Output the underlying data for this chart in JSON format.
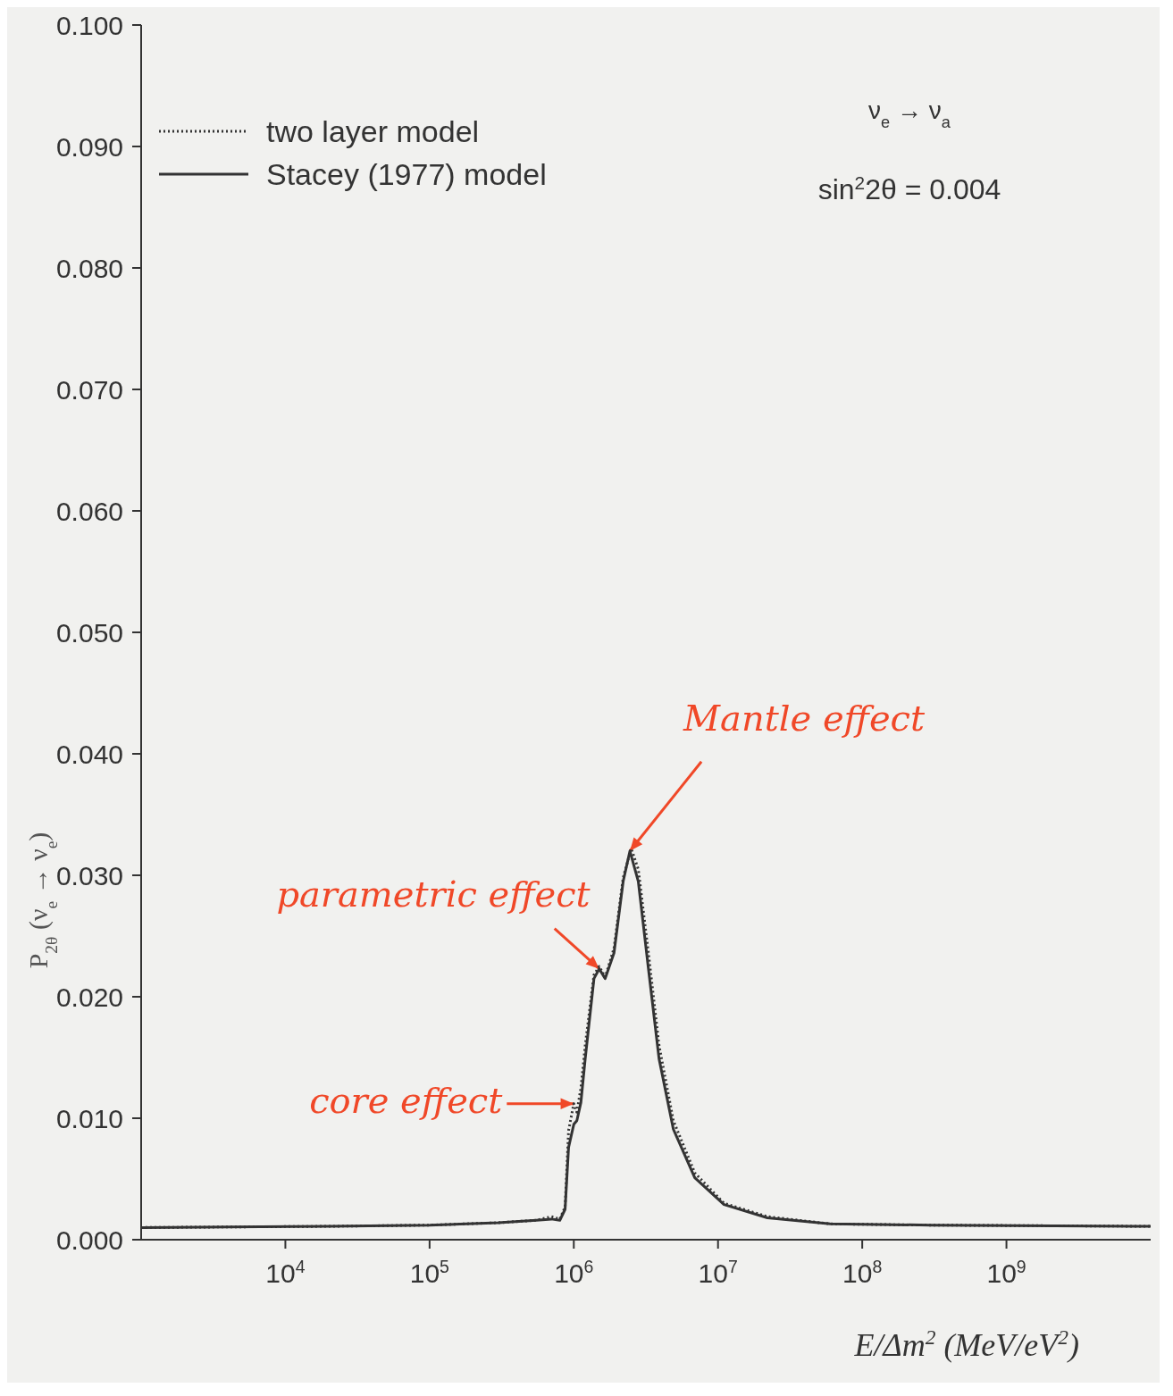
{
  "chart_data": {
    "type": "line",
    "xlabel": "E/Δm$^{2}$ (MeV/eV$^{2}$)",
    "ylabel": "P$_{2θ}$ (ν$_{e}$ → ν$_{e}$)",
    "log": "x",
    "xlim": [
      1000,
      10000000000
    ],
    "xticks": [
      {
        "value": 10000,
        "label": "10$^{4}$"
      },
      {
        "value": 100000,
        "label": "10$^{5}$"
      },
      {
        "value": 1000000,
        "label": "10$^{6}$"
      },
      {
        "value": 10000000,
        "label": "10$^{7}$"
      },
      {
        "value": 100000000,
        "label": "10$^{8}$"
      },
      {
        "value": 1000000000,
        "label": "10$^{9}$"
      }
    ],
    "ylim": [
      0,
      0.1
    ],
    "yticks": [
      {
        "value": 0,
        "label": "0.000"
      },
      {
        "value": 0.01,
        "label": "0.010"
      },
      {
        "value": 0.02,
        "label": "0.020"
      },
      {
        "value": 0.03,
        "label": "0.030"
      },
      {
        "value": 0.04,
        "label": "0.040"
      },
      {
        "value": 0.05,
        "label": "0.050"
      },
      {
        "value": 0.06,
        "label": "0.060"
      },
      {
        "value": 0.07,
        "label": "0.070"
      },
      {
        "value": 0.08,
        "label": "0.080"
      },
      {
        "value": 0.09,
        "label": "0.090"
      },
      {
        "value": 0.1,
        "label": "0.100"
      }
    ],
    "legend": "top left",
    "series": [
      {
        "name": "two layer model",
        "color": "#333333",
        "line_style": "dotted",
        "x": [
          1000,
          20000,
          100000,
          300000,
          550000,
          700000,
          800000,
          870000,
          920000,
          1000000,
          1050000,
          1120000,
          1200000,
          1380000,
          1500000,
          1650000,
          1900000,
          2200000,
          2500000,
          2800000,
          3300000,
          3900000,
          4900000,
          6900000,
          11000000,
          22000000,
          60000000,
          300000000,
          10000000000
        ],
        "values": [
          0.001,
          0.0011,
          0.0012,
          0.0014,
          0.0016,
          0.0019,
          0.0017,
          0.0027,
          0.009,
          0.0112,
          0.0105,
          0.0125,
          0.016,
          0.0218,
          0.0225,
          0.0216,
          0.024,
          0.0298,
          0.0322,
          0.0305,
          0.0235,
          0.016,
          0.0098,
          0.0055,
          0.003,
          0.0019,
          0.0013,
          0.0012,
          0.0011
        ]
      },
      {
        "name": "Stacey (1977) model",
        "color": "#333333",
        "line_style": "solid",
        "x": [
          1000,
          20000,
          100000,
          300000,
          550000,
          700000,
          800000,
          870000,
          920000,
          1000000,
          1050000,
          1120000,
          1200000,
          1380000,
          1500000,
          1650000,
          1900000,
          2200000,
          2450000,
          2800000,
          3300000,
          3900000,
          4900000,
          6900000,
          11000000,
          22000000,
          60000000,
          300000000,
          10000000000
        ],
        "values": [
          0.001,
          0.0011,
          0.0012,
          0.0014,
          0.0016,
          0.0017,
          0.0016,
          0.0025,
          0.0076,
          0.0095,
          0.0098,
          0.0113,
          0.0149,
          0.0215,
          0.0223,
          0.0215,
          0.0236,
          0.0295,
          0.032,
          0.0295,
          0.0222,
          0.0149,
          0.0091,
          0.0051,
          0.0029,
          0.0018,
          0.0013,
          0.0012,
          0.0011
        ]
      }
    ],
    "annotations": [
      "ν$_{e}$ → ν$_{a}$",
      "sin$^{2}$2θ = 0.004",
      {
        "text": "Mantle effect",
        "x": 2450000,
        "y": 0.032
      },
      {
        "text": "parametric effect",
        "x": 1500000,
        "y": 0.0223
      },
      {
        "text": "core effect",
        "x": 1000000,
        "y": 0.0112
      }
    ]
  }
}
